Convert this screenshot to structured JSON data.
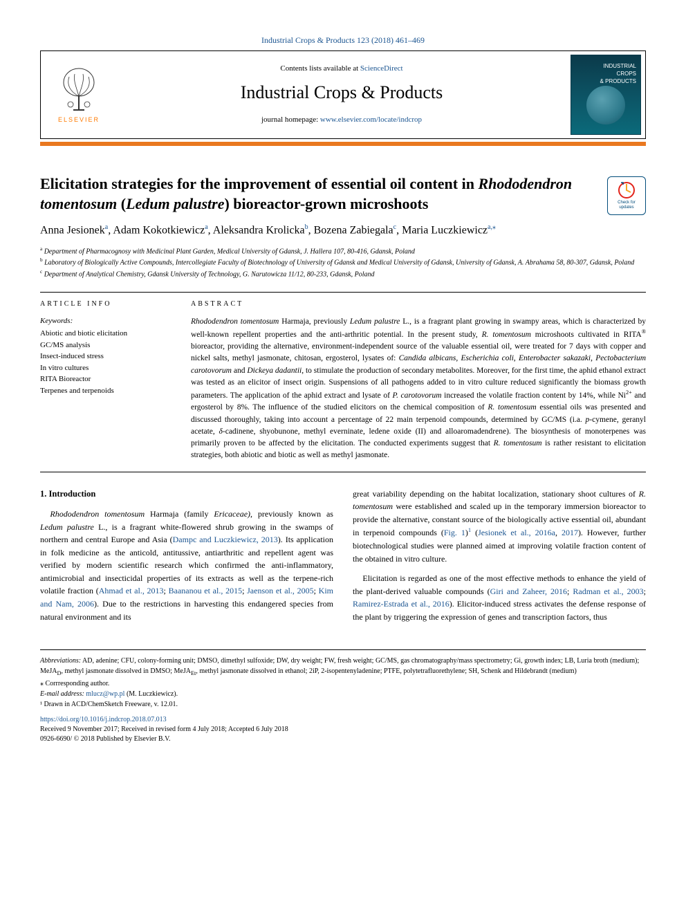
{
  "journalRef": "Industrial Crops & Products 123 (2018) 461–469",
  "header": {
    "contents_prefix": "Contents lists available at ",
    "contents_link": "ScienceDirect",
    "journal_title": "Industrial Crops & Products",
    "homepage_prefix": "journal homepage: ",
    "homepage_link": "www.elsevier.com/locate/indcrop",
    "elsevier": "ELSEVIER",
    "cover_title": "INDUSTRIAL\nCROPS\n& PRODUCTS"
  },
  "title_plain_pre": "Elicitation strategies for the improvement of essential oil content in ",
  "title_italic1": "Rhododendron tomentosum",
  "title_plain_mid": " (",
  "title_italic2": "Ledum palustre",
  "title_plain_post": ") bioreactor-grown microshoots",
  "updates_badge": "Check for updates",
  "authors": [
    {
      "name": "Anna Jesionek",
      "aff": "a"
    },
    {
      "name": "Adam Kokotkiewicz",
      "aff": "a"
    },
    {
      "name": "Aleksandra Krolicka",
      "aff": "b"
    },
    {
      "name": "Bozena Zabiegala",
      "aff": "c"
    },
    {
      "name": "Maria Luczkiewicz",
      "aff": "a,",
      "corr": true
    }
  ],
  "affiliations": {
    "a": "Department of Pharmacognosy with Medicinal Plant Garden, Medical University of Gdansk, J. Hallera 107, 80-416, Gdansk, Poland",
    "b": "Laboratory of Biologically Active Compounds, Intercollegiate Faculty of Biotechnology of University of Gdansk and Medical University of Gdansk, University of Gdansk, A. Abrahama 58, 80-307, Gdansk, Poland",
    "c": "Department of Analytical Chemistry, Gdansk University of Technology, G. Narutowicza 11/12, 80-233, Gdansk, Poland"
  },
  "article_info_heading": "ARTICLE INFO",
  "keywords_label": "Keywords:",
  "keywords": [
    "Abiotic and biotic elicitation",
    "GC/MS analysis",
    "Insect-induced stress",
    "In vitro cultures",
    "RITA Bioreactor",
    "Terpenes and terpenoids"
  ],
  "abstract_heading": "ABSTRACT",
  "abstract": "Rhododendron tomentosum Harmaja, previously Ledum palustre L., is a fragrant plant growing in swampy areas, which is characterized by well-known repellent properties and the anti-arthritic potential. In the present study, R. tomentosum microshoots cultivated in RITA® bioreactor, providing the alternative, environment-independent source of the valuable essential oil, were treated for 7 days with copper and nickel salts, methyl jasmonate, chitosan, ergosterol, lysates of: Candida albicans, Escherichia coli, Enterobacter sakazaki, Pectobacterium carotovorum and Dickeya dadantii, to stimulate the production of secondary metabolites. Moreover, for the first time, the aphid ethanol extract was tested as an elicitor of insect origin. Suspensions of all pathogens added to in vitro culture reduced significantly the biomass growth parameters. The application of the aphid extract and lysate of P. carotovorum increased the volatile fraction content by 14%, while Ni²⁺ and ergosterol by 8%. The influence of the studied elicitors on the chemical composition of R. tomentosum essential oils was presented and discussed thoroughly, taking into account a percentage of 22 main terpenoid compounds, determined by GC/MS (i.a. p-cymene, geranyl acetate, δ-cadinene, shyobunone, methyl everninate, ledene oxide (II) and alloaromadendrene). The biosynthesis of monoterpenes was primarily proven to be affected by the elicitation. The conducted experiments suggest that R. tomentosum is rather resistant to elicitation strategies, both abiotic and biotic as well as methyl jasmonate.",
  "intro_heading": "1. Introduction",
  "intro_p1_a": "Rhododendron tomentosum",
  "intro_p1_b": " Harmaja (family ",
  "intro_p1_c": "Ericaceae)",
  "intro_p1_d": ", previously known as ",
  "intro_p1_e": "Ledum palustre",
  "intro_p1_f": " L., is a fragrant white-flowered shrub growing in the swamps of northern and central Europe and Asia (",
  "intro_p1_link1": "Dampc and Luczkiewicz, 2013",
  "intro_p1_g": "). Its application in folk medicine as the anticold, antitussive, antiarthritic and repellent agent was verified by modern scientific research which confirmed the anti-inflammatory, antimicrobial and insecticidal properties of its extracts as well as the terpene-rich volatile fraction (",
  "intro_p1_link2": "Ahmad et al., 2013",
  "intro_p1_sep1": "; ",
  "intro_p1_link3": "Baananou et al., 2015",
  "intro_p1_sep2": "; ",
  "intro_p1_link4": "Jaenson et al., 2005",
  "intro_p1_sep3": "; ",
  "intro_p1_link5": "Kim and Nam, 2006",
  "intro_p1_h": "). Due to the restrictions in harvesting this endangered species from natural environment and its",
  "intro_p2_a": "great variability depending on the habitat localization, stationary shoot cultures of ",
  "intro_p2_b": "R. tomentosum",
  "intro_p2_c": " were established and scaled up in the temporary immersion bioreactor to provide the alternative, constant source of the biologically active essential oil, abundant in terpenoid compounds (",
  "intro_p2_link1": "Fig. 1",
  "intro_p2_d": ")",
  "intro_p2_sup": "1",
  "intro_p2_e": " (",
  "intro_p2_link2": "Jesionek et al., 2016a",
  "intro_p2_sep": ", ",
  "intro_p2_link3": "2017",
  "intro_p2_f": "). However, further biotechnological studies were planned aimed at improving volatile fraction content of the obtained in vitro culture.",
  "intro_p3_a": "Elicitation is regarded as one of the most effective methods to enhance the yield of the plant-derived valuable compounds (",
  "intro_p3_link1": "Giri and Zaheer, 2016",
  "intro_p3_sep1": "; ",
  "intro_p3_link2": "Radman et al., 2003",
  "intro_p3_sep2": "; ",
  "intro_p3_link3": "Ramirez-Estrada et al., 2016",
  "intro_p3_b": "). Elicitor-induced stress activates the defense response of the plant by triggering the expression of genes and transcription factors, thus",
  "footnotes": {
    "abbrev_label": "Abbreviations:",
    "abbrev_text": " AD, adenine; CFU, colony-forming unit; DMSO, dimethyl sulfoxide; DW, dry weight; FW, fresh weight; GC/MS, gas chromatography/mass spectrometry; Gi, growth index; LB, Luria broth (medium); MeJA_D, methyl jasmonate dissolved in DMSO; MeJA_Et, methyl jasmonate dissolved in ethanol; 2iP, 2-isopentenyladenine; PTFE, polytetrafluorethylene; SH, Schenk and Hildebrandt (medium)",
    "corr_label": "⁎ Corrresponding author.",
    "email_label": "E-mail address:",
    "email": "mlucz@wp.pl",
    "email_suffix": " (M. Luczkiewicz).",
    "fn1": "¹ Drawn in ACD/ChemSketch Freeware, v. 12.01."
  },
  "doi": "https://doi.org/10.1016/j.indcrop.2018.07.013",
  "received": "Received 9 November 2017; Received in revised form 4 July 2018; Accepted 6 July 2018",
  "copyright": "0926-6690/ © 2018 Published by Elsevier B.V.",
  "colors": {
    "link": "#1a5490",
    "orange": "#e9781f",
    "elsevier_orange": "#ff7a00"
  }
}
